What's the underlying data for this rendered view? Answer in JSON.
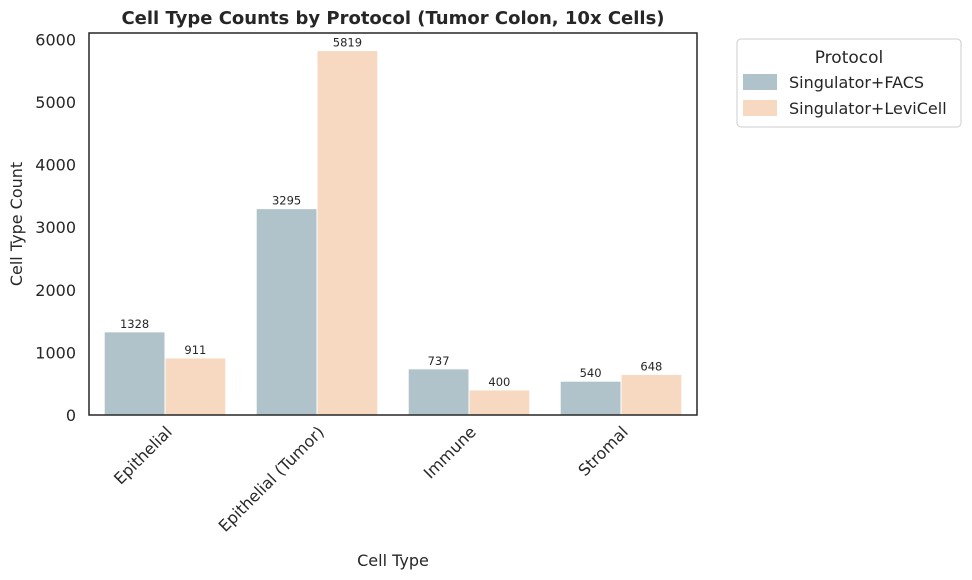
{
  "chart_data": {
    "type": "bar",
    "title": "Cell Type Counts by Protocol (Tumor Colon, 10x Cells)",
    "xlabel": "Cell Type",
    "ylabel": "Cell Type Count",
    "categories": [
      "Epithelial",
      "Epithelial (Tumor)",
      "Immune",
      "Stromal"
    ],
    "series": [
      {
        "name": "Singulator+FACS",
        "values": [
          1328,
          3295,
          737,
          540
        ],
        "color": "#b1c3ca"
      },
      {
        "name": "Singulator+LeviCell",
        "values": [
          911,
          5819,
          400,
          648
        ],
        "color": "#f6d9c0"
      }
    ],
    "ylim": [
      0,
      6100
    ],
    "yticks": [
      0,
      1000,
      2000,
      3000,
      4000,
      5000,
      6000
    ],
    "grid": false,
    "legend": {
      "title": "Protocol",
      "placement": "outside-top-right"
    }
  }
}
